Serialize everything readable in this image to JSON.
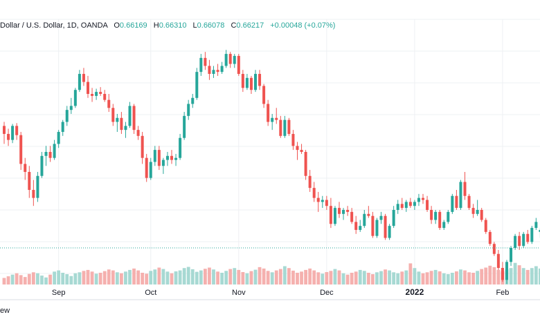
{
  "header": {
    "symbol": "Dollar / U.S. Dollar, 1D, OANDA",
    "o_label": "O",
    "o_value": "0.66169",
    "h_label": "H",
    "h_value": "0.66310",
    "l_label": "L",
    "l_value": "0.66078",
    "c_label": "C",
    "c_value": "0.66217",
    "change": "+0.00048 (+0.07%)"
  },
  "footer": {
    "text": "ew"
  },
  "colors": {
    "up": "#26a69a",
    "down": "#ef5350",
    "vol_up": "#a7d9d3",
    "vol_down": "#f5b0ae",
    "grid": "#eef0f3",
    "axis_text": "#131722",
    "last_price_line": "#26a69a"
  },
  "chart_data": {
    "type": "candlestick",
    "symbol": "Dollar / U.S. Dollar",
    "interval": "1D",
    "source": "OANDA",
    "x_tick_labels": [
      "Sep",
      "Oct",
      "Nov",
      "Dec",
      "2022",
      "Feb"
    ],
    "ylim": [
      0.5,
      6.3
    ],
    "grid": true,
    "last_price": 1.0,
    "candles": [
      [
        4.05,
        4.15,
        3.6,
        3.85
      ],
      [
        3.85,
        3.98,
        3.55,
        3.7
      ],
      [
        3.7,
        4.1,
        3.62,
        4.05
      ],
      [
        4.05,
        4.12,
        3.7,
        3.82
      ],
      [
        3.82,
        3.9,
        2.95,
        3.1
      ],
      [
        3.1,
        3.25,
        2.7,
        2.9
      ],
      [
        2.9,
        3.05,
        2.25,
        2.45
      ],
      [
        2.45,
        2.7,
        2.05,
        2.25
      ],
      [
        2.25,
        2.9,
        2.15,
        2.8
      ],
      [
        2.8,
        3.4,
        2.75,
        3.3
      ],
      [
        3.3,
        3.55,
        3.05,
        3.4
      ],
      [
        3.4,
        3.55,
        3.15,
        3.25
      ],
      [
        3.25,
        3.7,
        3.2,
        3.6
      ],
      [
        3.6,
        3.95,
        3.5,
        3.9
      ],
      [
        3.9,
        4.2,
        3.8,
        4.15
      ],
      [
        4.15,
        4.55,
        4.05,
        4.45
      ],
      [
        4.45,
        4.75,
        4.35,
        4.55
      ],
      [
        4.55,
        5.0,
        4.5,
        4.95
      ],
      [
        4.95,
        5.45,
        4.9,
        5.35
      ],
      [
        5.35,
        5.5,
        5.05,
        5.15
      ],
      [
        5.15,
        5.3,
        4.75,
        4.85
      ],
      [
        4.85,
        5.0,
        4.65,
        4.8
      ],
      [
        4.8,
        4.98,
        4.7,
        4.9
      ],
      [
        4.9,
        5.02,
        4.8,
        4.85
      ],
      [
        4.85,
        4.95,
        4.65,
        4.7
      ],
      [
        4.7,
        4.85,
        4.4,
        4.5
      ],
      [
        4.5,
        4.6,
        4.05,
        4.15
      ],
      [
        4.15,
        4.35,
        3.9,
        4.25
      ],
      [
        4.25,
        4.4,
        3.85,
        3.95
      ],
      [
        3.95,
        4.15,
        3.75,
        4.05
      ],
      [
        4.05,
        4.65,
        4.0,
        4.55
      ],
      [
        4.55,
        4.6,
        3.85,
        3.95
      ],
      [
        3.95,
        4.05,
        3.7,
        3.8
      ],
      [
        3.8,
        3.9,
        3.1,
        3.25
      ],
      [
        3.25,
        3.35,
        2.65,
        2.75
      ],
      [
        2.75,
        3.25,
        2.7,
        3.15
      ],
      [
        3.15,
        3.55,
        3.05,
        3.45
      ],
      [
        3.45,
        3.55,
        2.95,
        3.05
      ],
      [
        3.05,
        3.25,
        2.85,
        3.2
      ],
      [
        3.2,
        3.4,
        3.05,
        3.3
      ],
      [
        3.3,
        3.45,
        3.1,
        3.2
      ],
      [
        3.2,
        3.35,
        3.05,
        3.25
      ],
      [
        3.25,
        3.85,
        3.2,
        3.75
      ],
      [
        3.75,
        4.4,
        3.7,
        4.3
      ],
      [
        4.3,
        4.7,
        4.2,
        4.6
      ],
      [
        4.6,
        4.85,
        4.5,
        4.75
      ],
      [
        4.75,
        5.5,
        4.7,
        5.4
      ],
      [
        5.4,
        5.85,
        5.3,
        5.75
      ],
      [
        5.75,
        5.9,
        5.45,
        5.55
      ],
      [
        5.55,
        5.7,
        5.2,
        5.35
      ],
      [
        5.35,
        5.55,
        5.25,
        5.45
      ],
      [
        5.45,
        5.6,
        5.3,
        5.4
      ],
      [
        5.4,
        5.65,
        5.35,
        5.55
      ],
      [
        5.55,
        5.95,
        5.5,
        5.85
      ],
      [
        5.85,
        5.9,
        5.5,
        5.6
      ],
      [
        5.6,
        5.85,
        5.5,
        5.8
      ],
      [
        5.8,
        5.85,
        5.3,
        5.35
      ],
      [
        5.35,
        5.45,
        4.9,
        5.0
      ],
      [
        5.0,
        5.35,
        4.95,
        5.25
      ],
      [
        5.25,
        5.3,
        4.85,
        4.95
      ],
      [
        4.95,
        5.45,
        4.9,
        5.35
      ],
      [
        5.35,
        5.45,
        4.95,
        5.05
      ],
      [
        5.05,
        5.1,
        4.5,
        4.6
      ],
      [
        4.6,
        4.7,
        4.05,
        4.15
      ],
      [
        4.15,
        4.35,
        3.95,
        4.25
      ],
      [
        4.25,
        4.5,
        4.1,
        4.2
      ],
      [
        4.2,
        4.3,
        3.75,
        3.8
      ],
      [
        3.8,
        4.3,
        3.75,
        4.2
      ],
      [
        4.2,
        4.25,
        3.8,
        3.85
      ],
      [
        3.85,
        3.95,
        3.45,
        3.55
      ],
      [
        3.55,
        3.65,
        3.2,
        3.45
      ],
      [
        3.45,
        3.6,
        3.35,
        3.4
      ],
      [
        3.4,
        3.45,
        2.7,
        2.8
      ],
      [
        2.8,
        2.95,
        2.4,
        2.5
      ],
      [
        2.5,
        2.65,
        2.15,
        2.25
      ],
      [
        2.25,
        2.4,
        1.9,
        2.15
      ],
      [
        2.15,
        2.3,
        2.0,
        2.2
      ],
      [
        2.2,
        2.3,
        1.95,
        2.05
      ],
      [
        2.05,
        2.25,
        1.5,
        1.6
      ],
      [
        1.6,
        2.05,
        1.55,
        2.0
      ],
      [
        2.0,
        2.15,
        1.75,
        1.85
      ],
      [
        1.85,
        2.0,
        1.7,
        1.95
      ],
      [
        1.95,
        2.05,
        1.8,
        1.9
      ],
      [
        1.9,
        2.0,
        1.6,
        1.65
      ],
      [
        1.65,
        1.8,
        1.35,
        1.45
      ],
      [
        1.45,
        1.7,
        1.4,
        1.55
      ],
      [
        1.55,
        1.95,
        1.5,
        1.85
      ],
      [
        1.85,
        2.05,
        1.75,
        1.8
      ],
      [
        1.8,
        1.9,
        1.25,
        1.3
      ],
      [
        1.3,
        1.75,
        1.25,
        1.7
      ],
      [
        1.7,
        1.9,
        1.6,
        1.8
      ],
      [
        1.8,
        1.85,
        1.2,
        1.25
      ],
      [
        1.25,
        1.6,
        1.2,
        1.55
      ],
      [
        1.55,
        2.05,
        1.5,
        1.95
      ],
      [
        1.95,
        2.2,
        1.85,
        2.1
      ],
      [
        2.1,
        2.25,
        1.95,
        2.0
      ],
      [
        2.0,
        2.2,
        1.9,
        2.15
      ],
      [
        2.15,
        2.25,
        2.0,
        2.05
      ],
      [
        2.05,
        2.2,
        1.95,
        2.15
      ],
      [
        2.15,
        2.35,
        2.05,
        2.25
      ],
      [
        2.25,
        2.35,
        2.1,
        2.2
      ],
      [
        2.2,
        2.3,
        1.9,
        1.95
      ],
      [
        1.95,
        2.05,
        1.6,
        1.7
      ],
      [
        1.7,
        1.95,
        1.6,
        1.9
      ],
      [
        1.9,
        1.95,
        1.45,
        1.5
      ],
      [
        1.5,
        1.7,
        1.45,
        1.65
      ],
      [
        1.65,
        1.95,
        1.6,
        1.9
      ],
      [
        1.9,
        2.35,
        1.85,
        2.3
      ],
      [
        2.3,
        2.45,
        1.95,
        2.0
      ],
      [
        2.0,
        2.7,
        1.95,
        2.65
      ],
      [
        2.65,
        2.9,
        2.2,
        2.3
      ],
      [
        2.3,
        2.35,
        1.95,
        2.0
      ],
      [
        2.0,
        2.1,
        1.75,
        1.85
      ],
      [
        1.85,
        2.2,
        1.8,
        1.95
      ],
      [
        1.95,
        2.0,
        1.65,
        1.7
      ],
      [
        1.7,
        1.75,
        1.35,
        1.4
      ],
      [
        1.4,
        1.45,
        1.05,
        1.1
      ],
      [
        1.1,
        1.15,
        0.8,
        0.85
      ],
      [
        0.85,
        0.95,
        0.45,
        0.5
      ],
      [
        0.5,
        0.65,
        0.15,
        0.2
      ],
      [
        0.2,
        0.7,
        0.1,
        0.65
      ],
      [
        0.65,
        1.05,
        0.55,
        1.0
      ],
      [
        1.0,
        1.35,
        0.95,
        1.3
      ],
      [
        1.3,
        1.4,
        0.95,
        1.05
      ],
      [
        1.05,
        1.4,
        1.0,
        1.35
      ],
      [
        1.35,
        1.45,
        1.1,
        1.15
      ],
      [
        1.15,
        1.55,
        1.1,
        1.5
      ],
      [
        1.5,
        1.75,
        1.45,
        1.65
      ],
      [
        1.4,
        1.5,
        1.25,
        1.45
      ]
    ],
    "volumes": [
      [
        0.28,
        0.35,
        0.42,
        0.48,
        0.4,
        0.32,
        0.45,
        0.52,
        0.48,
        0.38,
        0.3,
        0.42,
        0.55,
        0.6,
        0.5,
        0.44,
        0.36,
        0.48,
        0.52,
        0.58,
        0.62,
        0.55,
        0.46,
        0.5,
        0.57,
        0.64,
        0.6,
        0.52,
        0.48,
        0.55,
        0.62,
        0.68,
        0.6,
        0.5,
        0.46,
        0.58,
        0.64,
        0.72,
        0.66,
        0.55,
        0.48,
        0.56,
        0.6,
        0.7,
        0.75,
        0.65,
        0.54,
        0.6,
        0.67,
        0.72,
        0.64,
        0.55,
        0.5,
        0.58,
        0.66,
        0.7,
        0.62,
        0.53,
        0.48,
        0.57,
        0.63,
        0.74,
        0.68,
        0.58,
        0.52,
        0.6,
        0.66,
        0.78,
        0.7,
        0.59,
        0.5,
        0.55,
        0.62,
        0.68,
        0.6,
        0.52,
        0.46,
        0.53,
        0.58,
        0.66,
        0.6,
        0.48,
        0.42,
        0.5,
        0.55,
        0.62,
        0.58,
        0.5,
        0.44,
        0.52,
        0.57,
        0.64,
        0.6,
        0.52,
        0.48,
        0.55,
        0.6,
        0.9,
        0.7,
        0.55,
        0.48,
        0.52,
        0.58,
        0.62,
        0.56,
        0.48,
        0.44,
        0.5,
        0.56,
        0.64,
        0.6,
        0.52,
        0.5,
        0.58,
        0.66,
        0.72,
        0.8,
        0.74,
        0.62,
        0.56,
        0.64,
        0.7,
        0.92,
        0.82,
        0.7,
        0.62,
        0.7,
        0.78,
        0.68,
        0.6
      ]
    ]
  }
}
